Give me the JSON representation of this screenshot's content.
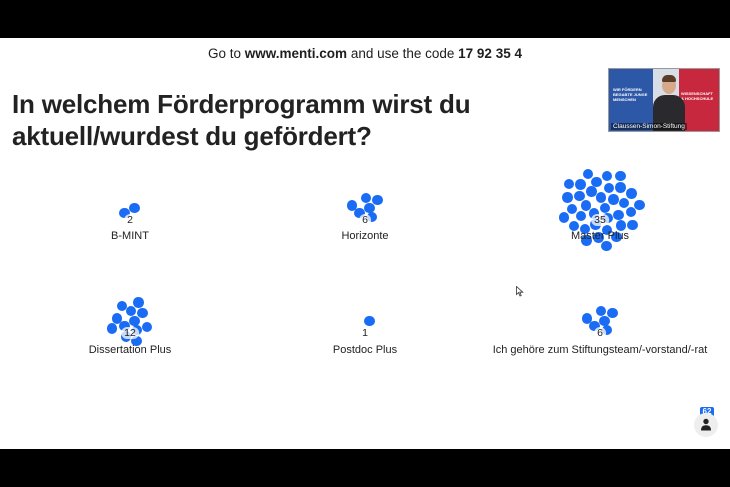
{
  "join": {
    "prefix": "Go to ",
    "url": "www.menti.com",
    "middle": " and use the code ",
    "code": "17 92 35 4"
  },
  "question": "In welchem Förderprogramm wirst du aktuell/wurdest du gefördert?",
  "camera": {
    "label": "Claussen-Simon-Stiftung",
    "poster_left": "WIR FÖRDERN BEGABTE JUNGE MENSCHEN",
    "poster_right": "WISSENSCHAFT & HOCHSCHULE"
  },
  "colors": {
    "accent": "#196cf3",
    "slide_bg": "#ffffff",
    "letterbox": "#000000"
  },
  "chart_data": {
    "type": "dots",
    "categories": [
      "B-MINT",
      "Horizonte",
      "Master Plus",
      "Dissertation Plus",
      "Postdoc Plus",
      "Ich gehöre zum Stiftungsteam/-vorstand/-rat"
    ],
    "values": [
      2,
      6,
      35,
      12,
      1,
      6
    ],
    "count_labels": [
      "2",
      "6",
      "35",
      "12",
      "1",
      "6"
    ]
  },
  "participants": {
    "count": "62",
    "icon": "person-icon"
  }
}
